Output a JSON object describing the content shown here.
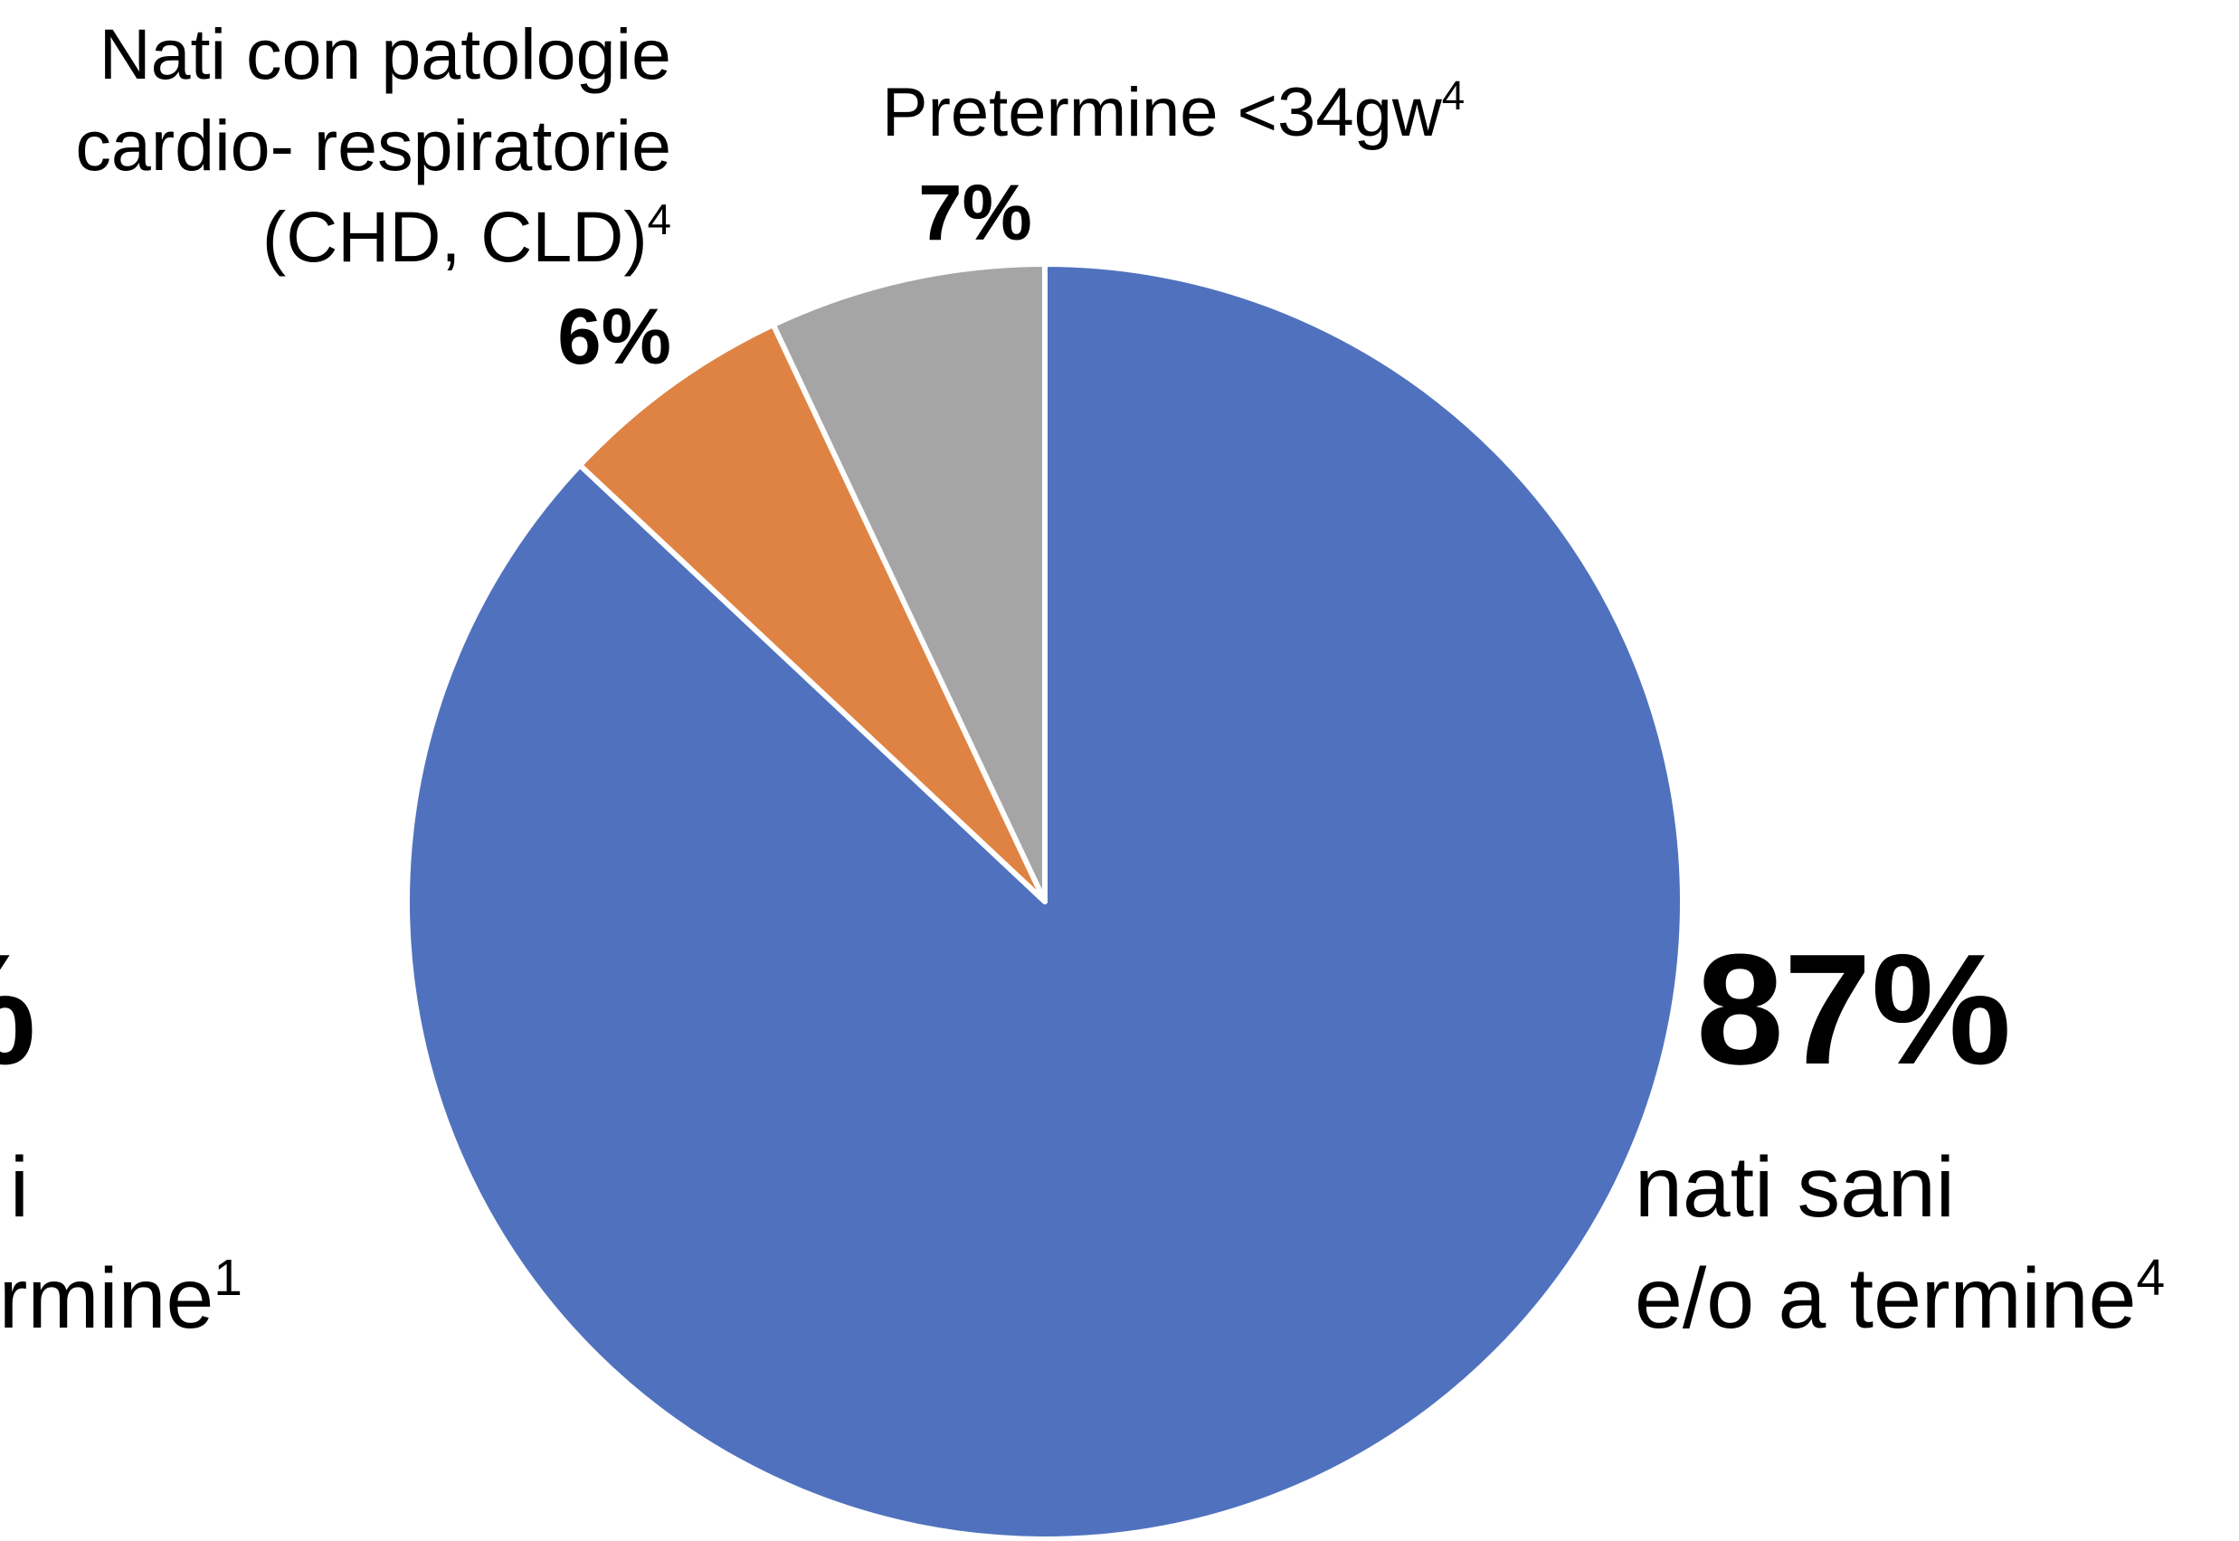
{
  "chart_data": {
    "type": "pie",
    "values": [
      87,
      6,
      7
    ],
    "value_labels": [
      "87%",
      "6%",
      "7%"
    ],
    "colors": [
      "#5072be",
      "#df8344",
      "#a5a5a5"
    ],
    "labels": [
      {
        "lines": [
          "nati sani",
          "e/o a termine"
        ],
        "sup": "4"
      },
      {
        "lines": [
          "Nati con patologie",
          "cardio- respiratorie",
          "(CHD, CLD)"
        ],
        "sup": "4"
      },
      {
        "lines": [
          "Pretermine <34gw"
        ],
        "sup": "4"
      }
    ],
    "annotations": [
      {
        "value_label": "%",
        "lines": [
          "i",
          "rmine"
        ],
        "sup": "1"
      }
    ]
  }
}
